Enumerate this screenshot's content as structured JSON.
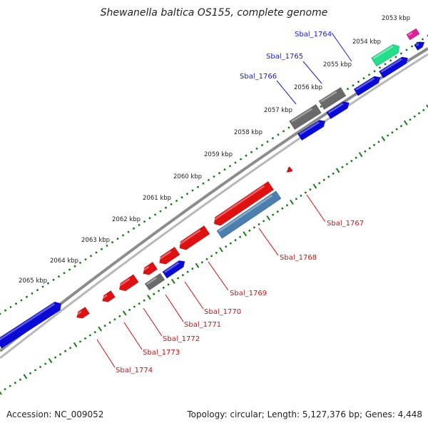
{
  "title": "Shewanella baltica OS155, complete genome",
  "footer": {
    "accession": "Accession: NC_009052",
    "stats": "Topology: circular; Length: 5,127,376 bp; Genes: 4,448"
  },
  "colors": {
    "backbone": "#8c8c8c",
    "ticks": "#1a7a1a",
    "forward_gene": "#0a0ad8",
    "reverse_gene": "#e01010",
    "gray_gene": "#6a6a6a",
    "steel_gene": "#4a7fb0",
    "green_gene": "#22e08a",
    "pink_gene": "#e0209a",
    "label_top": "#1a1acc",
    "label_bottom": "#cc1111"
  },
  "kbp_labels": [
    "2053 kbp",
    "2054 kbp",
    "2055 kbp",
    "2056 kbp",
    "2057 kbp",
    "2058 kbp",
    "2059 kbp",
    "2060 kbp",
    "2061 kbp",
    "2062 kbp",
    "2063 kbp",
    "2064 kbp",
    "2065 kbp"
  ],
  "gene_labels_top": [
    "Sbal_1764",
    "Sbal_1765",
    "Sbal_1766"
  ],
  "gene_labels_bottom": [
    "Sbal_1767",
    "Sbal_1768",
    "Sbal_1769",
    "Sbal_1770",
    "Sbal_1771",
    "Sbal_1772",
    "Sbal_1773",
    "Sbal_1774"
  ]
}
